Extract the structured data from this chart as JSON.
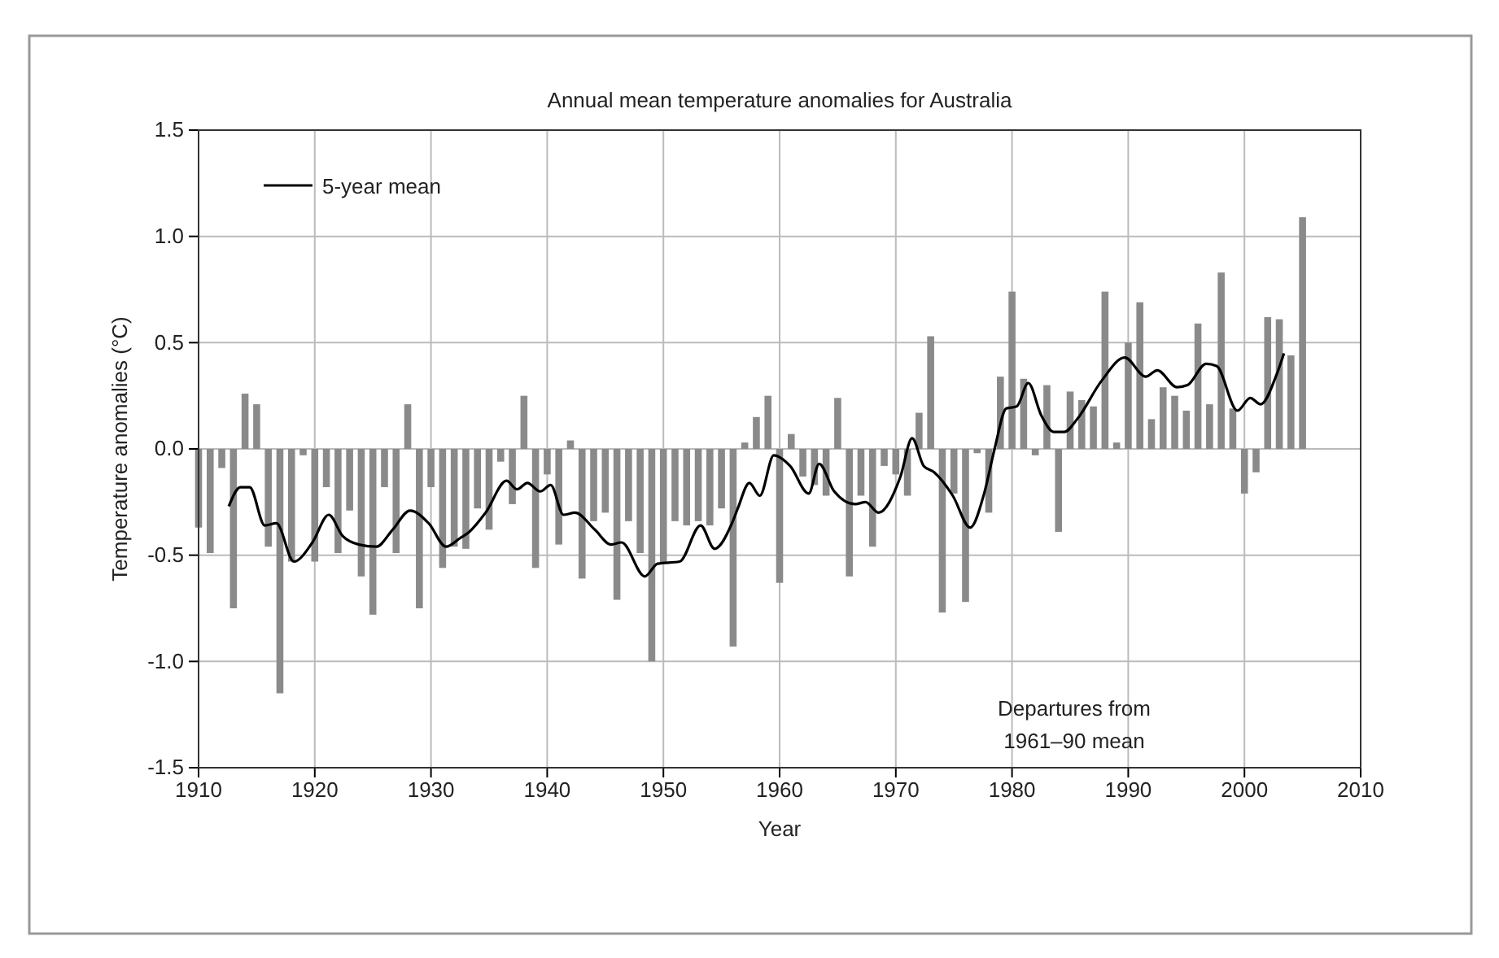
{
  "chart_data": {
    "type": "bar",
    "title": "Annual mean temperature anomalies for Australia",
    "xlabel": "Year",
    "ylabel": "Temperature anomalies (°C)",
    "xlim": [
      1910,
      2010
    ],
    "xticks": [
      1910,
      1920,
      1930,
      1940,
      1950,
      1960,
      1970,
      1980,
      1990,
      2000,
      2010
    ],
    "ylim": [
      -1.5,
      1.5
    ],
    "yticks": [
      -1.5,
      {
        "value": -1,
        "label": "-1.0"
      },
      -0.5,
      {
        "value": 0,
        "label": "0.0"
      },
      0.5,
      {
        "value": 1,
        "label": "1.0"
      },
      1.5
    ],
    "grid": true,
    "legend": "top left",
    "annotations": [
      "Departures from\n1961–90 mean"
    ],
    "series": [
      {
        "color": "#8a8a8a",
        "x": [
          1910,
          1911,
          1912,
          1913,
          1914,
          1915,
          1916,
          1917,
          1918,
          1919,
          1920,
          1921,
          1922,
          1923,
          1924,
          1925,
          1926,
          1927,
          1928,
          1929,
          1930,
          1931,
          1932,
          1933,
          1934,
          1935,
          1936,
          1937,
          1938,
          1939,
          1940,
          1941,
          1942,
          1943,
          1944,
          1945,
          1946,
          1947,
          1948,
          1949,
          1950,
          1951,
          1952,
          1953,
          1954,
          1955,
          1956,
          1957,
          1958,
          1959,
          1960,
          1961,
          1962,
          1963,
          1964,
          1965,
          1966,
          1967,
          1968,
          1969,
          1970,
          1971,
          1972,
          1973,
          1974,
          1975,
          1976,
          1977,
          1978,
          1979,
          1980,
          1981,
          1982,
          1983,
          1984,
          1985,
          1986,
          1987,
          1988,
          1989,
          1990,
          1991,
          1992,
          1993,
          1994,
          1995,
          1996,
          1997,
          1998,
          1999,
          2000,
          2001,
          2002,
          2003,
          2004,
          2005
        ],
        "values": [
          -0.37,
          -0.49,
          -0.09,
          -0.75,
          0.26,
          0.21,
          -0.46,
          -1.15,
          -0.53,
          -0.03,
          -0.53,
          -0.18,
          -0.49,
          -0.29,
          -0.6,
          -0.78,
          -0.18,
          -0.49,
          0.21,
          -0.75,
          -0.18,
          -0.56,
          -0.46,
          -0.47,
          -0.28,
          -0.38,
          -0.06,
          -0.26,
          0.25,
          -0.56,
          -0.12,
          -0.45,
          0.04,
          -0.61,
          -0.34,
          -0.3,
          -0.71,
          -0.34,
          -0.49,
          -1.0,
          -0.54,
          -0.34,
          -0.36,
          -0.34,
          -0.36,
          -0.28,
          -0.93,
          0.03,
          0.15,
          0.25,
          -0.63,
          0.07,
          -0.13,
          -0.17,
          -0.22,
          0.24,
          -0.6,
          -0.22,
          -0.46,
          -0.08,
          -0.12,
          -0.22,
          0.17,
          0.53,
          -0.77,
          -0.21,
          -0.72,
          -0.02,
          -0.3,
          0.34,
          0.74,
          0.33,
          -0.03,
          0.3,
          -0.39,
          0.27,
          0.23,
          0.2,
          0.74,
          0.03,
          0.5,
          0.69,
          0.14,
          0.29,
          0.25,
          0.18,
          0.59,
          0.21,
          0.83,
          0.19,
          -0.21,
          -0.11,
          0.62,
          0.61,
          0.44,
          1.09
        ]
      },
      {
        "type": "line",
        "name": "5-year mean",
        "color": "#000000",
        "x": [
          1912.6,
          1913.6,
          1914.4,
          1915.7,
          1916.7,
          1918.2,
          1919.8,
          1921.2,
          1922.4,
          1923.8,
          1925.3,
          1926.7,
          1928.2,
          1929.8,
          1931.3,
          1932.5,
          1933.3,
          1934.7,
          1936.5,
          1937.4,
          1938.3,
          1939.4,
          1940.3,
          1941.4,
          1942.4,
          1944.1,
          1945.5,
          1946.4,
          1948.4,
          1949.5,
          1951.4,
          1953.2,
          1954.4,
          1955.9,
          1956.4,
          1957.4,
          1958.3,
          1959.5,
          1960.9,
          1962.5,
          1963.4,
          1964.7,
          1966.5,
          1967.4,
          1968.5,
          1970.4,
          1971.4,
          1972.4,
          1973.3,
          1974.9,
          1976.4,
          1977.6,
          1978.5,
          1979.5,
          1980.4,
          1981.4,
          1982.5,
          1983.6,
          1984.5,
          1985.6,
          1987.7,
          1989.7,
          1991.5,
          1992.5,
          1994.2,
          1995.1,
          1996.7,
          1997.6,
          1999.4,
          2000.5,
          2001.4,
          2002.7,
          2003.4
        ],
        "values": [
          -0.27,
          -0.18,
          -0.18,
          -0.36,
          -0.35,
          -0.53,
          -0.44,
          -0.31,
          -0.41,
          -0.45,
          -0.46,
          -0.38,
          -0.29,
          -0.35,
          -0.46,
          -0.42,
          -0.39,
          -0.3,
          -0.15,
          -0.19,
          -0.16,
          -0.2,
          -0.17,
          -0.31,
          -0.3,
          -0.38,
          -0.45,
          -0.44,
          -0.6,
          -0.54,
          -0.53,
          -0.36,
          -0.47,
          -0.35,
          -0.28,
          -0.16,
          -0.22,
          -0.03,
          -0.08,
          -0.21,
          -0.07,
          -0.2,
          -0.26,
          -0.25,
          -0.3,
          -0.13,
          0.05,
          -0.08,
          -0.11,
          -0.22,
          -0.37,
          -0.21,
          0,
          0.19,
          0.2,
          0.31,
          0.16,
          0.08,
          0.08,
          0.14,
          0.32,
          0.43,
          0.34,
          0.37,
          0.29,
          0.3,
          0.4,
          0.39,
          0.18,
          0.24,
          0.21,
          0.34,
          0.45
        ]
      }
    ]
  }
}
